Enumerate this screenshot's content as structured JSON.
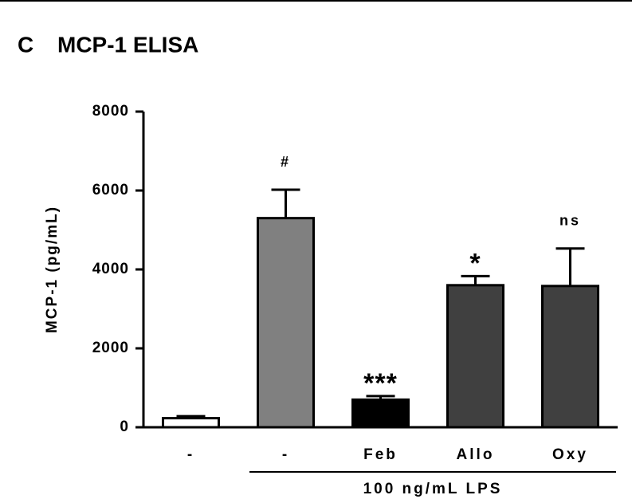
{
  "chart_data": {
    "type": "bar",
    "panel_label": "C",
    "title": "MCP-1 ELISA",
    "y_label": "MCP-1 (pg/mL)",
    "categories": [
      "-",
      "-",
      "Feb",
      "Allo",
      "Oxy"
    ],
    "values": [
      230,
      5300,
      700,
      3600,
      3580
    ],
    "errors": [
      50,
      720,
      90,
      230,
      950
    ],
    "colors": [
      "#ffffff",
      "#808080",
      "#000000",
      "#404040",
      "#404040"
    ],
    "annotations": [
      null,
      "#",
      "***",
      "*",
      "ns"
    ],
    "group_label": "100 ng/mL LPS",
    "ylim": [
      0,
      8000
    ],
    "yticks": [
      0,
      2000,
      4000,
      6000,
      8000
    ]
  }
}
